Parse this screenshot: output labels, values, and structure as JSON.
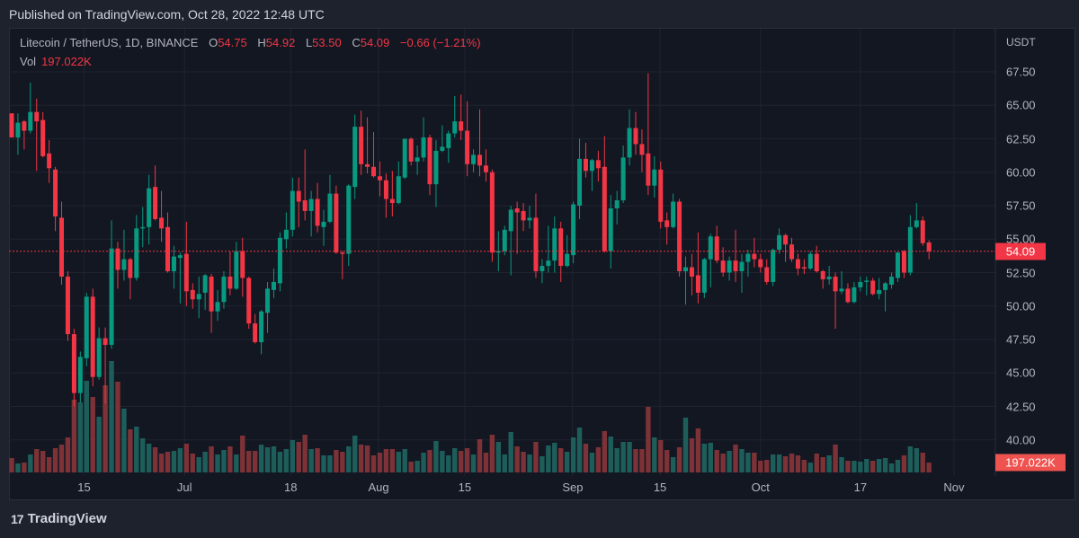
{
  "header": {
    "published": "Published on TradingView.com, Oct 28, 2022 12:48 UTC"
  },
  "legend": {
    "symbol": "Litecoin / TetherUS, 1D, BINANCE",
    "o_label": "O",
    "o": "54.75",
    "h_label": "H",
    "h": "54.92",
    "l_label": "L",
    "l": "53.50",
    "c_label": "C",
    "c": "54.09",
    "change": "−0.66 (−1.21%)",
    "vol_label": "Vol",
    "vol": "197.022K"
  },
  "axis": {
    "unit": "USDT",
    "price_tag": "54.09",
    "volume_tag": "197.022K"
  },
  "footer": {
    "brand": "TradingView",
    "logo_glyph": "17"
  },
  "colors": {
    "up": "#089981",
    "down": "#f23645",
    "up_vol": "#1d5e5b",
    "down_vol": "#7c3236",
    "grid": "#1f2330",
    "bg": "#131722"
  },
  "chart_data": {
    "type": "candlestick",
    "title": "Litecoin / TetherUS, 1D, BINANCE",
    "ylabel": "USDT",
    "ylim": [
      40,
      67.5
    ],
    "last_price": 54.09,
    "price_ticks": [
      "67.50",
      "65.00",
      "62.50",
      "60.00",
      "57.50",
      "55.00",
      "52.50",
      "50.00",
      "47.50",
      "45.00",
      "42.50",
      "40.00"
    ],
    "x_ticks": [
      {
        "label": "15",
        "index": 11.6
      },
      {
        "label": "Jul",
        "index": 27.7
      },
      {
        "label": "18",
        "index": 44.7
      },
      {
        "label": "Aug",
        "index": 58.8
      },
      {
        "label": "15",
        "index": 72.6
      },
      {
        "label": "Sep",
        "index": 89.9
      },
      {
        "label": "15",
        "index": 103.9
      },
      {
        "label": "Oct",
        "index": 120
      },
      {
        "label": "17",
        "index": 136
      },
      {
        "label": "Nov",
        "index": 151
      }
    ],
    "candles_ohlc": [
      [
        64.4,
        64.4,
        62.6,
        62.6
      ],
      [
        62.6,
        64.4,
        61.3,
        63.7
      ],
      [
        63.8,
        63.9,
        61.7,
        63.1
      ],
      [
        63.1,
        66.7,
        62.9,
        64.5
      ],
      [
        64.5,
        65.5,
        60.1,
        63.8
      ],
      [
        63.9,
        64.5,
        61.1,
        61.2
      ],
      [
        61.4,
        62.4,
        59.2,
        60.3
      ],
      [
        60.2,
        60.4,
        55.6,
        56.7
      ],
      [
        56.6,
        57.8,
        51.6,
        52.2
      ],
      [
        52.2,
        52.6,
        47.4,
        47.9
      ],
      [
        47.9,
        48.3,
        42.5,
        43.5
      ],
      [
        43.5,
        46.6,
        42.8,
        46.2
      ],
      [
        46.1,
        51.0,
        45.5,
        50.7
      ],
      [
        50.7,
        51.3,
        44.0,
        44.7
      ],
      [
        44.7,
        48.4,
        44.5,
        47.6
      ],
      [
        47.6,
        48.4,
        42.7,
        47.1
      ],
      [
        47.1,
        56.4,
        46.8,
        54.3
      ],
      [
        54.3,
        54.8,
        51.3,
        52.7
      ],
      [
        52.7,
        55.7,
        51.9,
        53.5
      ],
      [
        53.5,
        53.6,
        50.5,
        52.1
      ],
      [
        52.1,
        56.8,
        51.9,
        55.8
      ],
      [
        55.8,
        57.4,
        54.4,
        55.9
      ],
      [
        55.9,
        59.8,
        54.6,
        58.8
      ],
      [
        58.9,
        60.5,
        56.4,
        56.5
      ],
      [
        56.6,
        58.6,
        54.8,
        55.8
      ],
      [
        55.9,
        57.0,
        52.5,
        52.6
      ],
      [
        52.6,
        54.5,
        51.3,
        53.7
      ],
      [
        53.6,
        54.0,
        50.2,
        53.8
      ],
      [
        53.9,
        56.3,
        50.0,
        51.1
      ],
      [
        51.2,
        51.7,
        49.8,
        50.5
      ],
      [
        50.5,
        52.2,
        49.1,
        50.9
      ],
      [
        51.0,
        52.4,
        49.7,
        52.3
      ],
      [
        52.2,
        52.4,
        48.0,
        49.6
      ],
      [
        49.6,
        51.2,
        48.9,
        50.3
      ],
      [
        50.3,
        52.6,
        49.8,
        52.2
      ],
      [
        52.2,
        54.1,
        50.8,
        51.3
      ],
      [
        51.3,
        54.8,
        51.2,
        54.1
      ],
      [
        54.1,
        55.1,
        50.7,
        52.1
      ],
      [
        52.1,
        52.2,
        48.3,
        48.7
      ],
      [
        48.7,
        49.4,
        47.2,
        47.3
      ],
      [
        47.3,
        49.7,
        46.4,
        49.6
      ],
      [
        49.5,
        51.8,
        48.0,
        51.3
      ],
      [
        51.2,
        52.8,
        50.6,
        51.8
      ],
      [
        51.7,
        55.5,
        51.1,
        55.1
      ],
      [
        55.0,
        57.0,
        54.3,
        55.7
      ],
      [
        55.7,
        59.6,
        55.2,
        58.6
      ],
      [
        58.6,
        59.6,
        55.9,
        57.8
      ],
      [
        57.9,
        61.7,
        56.4,
        57.1
      ],
      [
        57.1,
        58.6,
        55.2,
        58.0
      ],
      [
        58.0,
        59.2,
        55.5,
        56.0
      ],
      [
        55.9,
        57.2,
        54.5,
        56.3
      ],
      [
        56.3,
        59.8,
        56.2,
        58.4
      ],
      [
        58.4,
        59.0,
        53.9,
        54.0
      ],
      [
        54.0,
        54.1,
        52.0,
        53.9
      ],
      [
        53.9,
        59.1,
        53.0,
        59.0
      ],
      [
        58.9,
        64.3,
        58.0,
        63.4
      ],
      [
        63.4,
        64.6,
        59.8,
        60.6
      ],
      [
        60.6,
        64.1,
        59.9,
        60.4
      ],
      [
        60.4,
        63.0,
        59.6,
        59.7
      ],
      [
        59.7,
        60.8,
        58.2,
        59.4
      ],
      [
        59.4,
        59.9,
        56.6,
        58.0
      ],
      [
        58.0,
        60.1,
        56.7,
        57.7
      ],
      [
        57.7,
        60.8,
        57.6,
        59.7
      ],
      [
        59.6,
        62.5,
        59.5,
        62.5
      ],
      [
        62.5,
        62.6,
        60.5,
        60.8
      ],
      [
        60.8,
        62.0,
        59.8,
        61.1
      ],
      [
        61.1,
        64.1,
        60.8,
        62.6
      ],
      [
        62.6,
        62.8,
        58.3,
        59.1
      ],
      [
        59.1,
        62.4,
        57.4,
        61.6
      ],
      [
        61.6,
        63.5,
        61.5,
        61.9
      ],
      [
        61.8,
        63.1,
        60.7,
        62.9
      ],
      [
        62.9,
        65.7,
        62.6,
        63.8
      ],
      [
        63.8,
        65.8,
        62.4,
        63.1
      ],
      [
        63.1,
        65.3,
        59.7,
        60.6
      ],
      [
        60.6,
        61.7,
        60.0,
        61.3
      ],
      [
        61.3,
        64.7,
        59.7,
        60.5
      ],
      [
        60.5,
        61.7,
        59.3,
        60.0
      ],
      [
        60.0,
        60.2,
        53.3,
        54.0
      ],
      [
        54.0,
        55.6,
        52.6,
        54.1
      ],
      [
        54.1,
        56.0,
        53.8,
        55.7
      ],
      [
        55.6,
        57.5,
        52.3,
        57.2
      ],
      [
        57.3,
        57.8,
        53.9,
        57.0
      ],
      [
        57.1,
        57.7,
        55.6,
        56.4
      ],
      [
        56.4,
        57.5,
        55.8,
        56.6
      ],
      [
        56.6,
        58.4,
        52.1,
        52.6
      ],
      [
        52.6,
        53.5,
        51.7,
        53.0
      ],
      [
        53.0,
        56.0,
        52.5,
        53.4
      ],
      [
        53.4,
        56.7,
        52.5,
        55.8
      ],
      [
        55.8,
        56.3,
        51.8,
        53.0
      ],
      [
        53.0,
        55.3,
        52.9,
        53.9
      ],
      [
        53.8,
        57.8,
        53.2,
        57.6
      ],
      [
        57.5,
        62.5,
        56.5,
        61.0
      ],
      [
        61.0,
        62.2,
        59.6,
        60.1
      ],
      [
        60.1,
        61.0,
        58.6,
        60.9
      ],
      [
        60.9,
        61.6,
        59.3,
        60.3
      ],
      [
        60.4,
        62.7,
        54.0,
        54.1
      ],
      [
        54.1,
        58.3,
        52.8,
        57.3
      ],
      [
        57.3,
        58.6,
        56.1,
        57.9
      ],
      [
        57.9,
        62.0,
        57.7,
        61.1
      ],
      [
        61.1,
        64.7,
        60.5,
        63.3
      ],
      [
        63.3,
        64.5,
        61.3,
        62.1
      ],
      [
        62.1,
        63.2,
        60.0,
        61.3
      ],
      [
        61.4,
        67.4,
        58.3,
        59.0
      ],
      [
        59.0,
        61.2,
        58.1,
        60.2
      ],
      [
        60.2,
        60.8,
        55.8,
        56.3
      ],
      [
        56.4,
        57.0,
        54.6,
        55.9
      ],
      [
        55.9,
        58.4,
        55.8,
        57.8
      ],
      [
        57.8,
        58.0,
        52.2,
        52.6
      ],
      [
        52.6,
        53.7,
        50.1,
        52.9
      ],
      [
        52.9,
        53.9,
        50.8,
        52.2
      ],
      [
        52.3,
        55.5,
        50.2,
        51.0
      ],
      [
        51.0,
        53.6,
        50.6,
        53.5
      ],
      [
        53.5,
        55.4,
        51.4,
        55.2
      ],
      [
        55.2,
        56.0,
        53.2,
        53.4
      ],
      [
        53.4,
        54.4,
        52.2,
        52.5
      ],
      [
        52.5,
        53.7,
        51.9,
        53.4
      ],
      [
        53.4,
        55.7,
        51.8,
        52.6
      ],
      [
        52.6,
        53.9,
        51.0,
        53.3
      ],
      [
        53.3,
        54.2,
        52.2,
        53.9
      ],
      [
        53.9,
        55.1,
        52.9,
        53.5
      ],
      [
        53.5,
        53.9,
        52.5,
        52.9
      ],
      [
        52.9,
        53.5,
        51.6,
        51.8
      ],
      [
        51.8,
        54.3,
        51.5,
        54.2
      ],
      [
        54.2,
        55.8,
        53.9,
        55.3
      ],
      [
        55.3,
        55.4,
        53.3,
        54.6
      ],
      [
        54.6,
        55.1,
        53.3,
        53.5
      ],
      [
        53.5,
        53.9,
        52.3,
        52.8
      ],
      [
        52.9,
        53.5,
        52.4,
        52.8
      ],
      [
        52.8,
        54.1,
        52.7,
        53.9
      ],
      [
        53.9,
        54.5,
        52.5,
        52.6
      ],
      [
        52.6,
        52.7,
        51.3,
        52.0
      ],
      [
        52.0,
        53.0,
        51.6,
        52.2
      ],
      [
        52.2,
        52.5,
        48.3,
        51.1
      ],
      [
        51.1,
        52.6,
        50.9,
        51.3
      ],
      [
        51.3,
        51.7,
        50.2,
        50.3
      ],
      [
        50.3,
        51.8,
        50.2,
        51.4
      ],
      [
        51.4,
        52.2,
        51.1,
        51.8
      ],
      [
        51.8,
        52.2,
        50.8,
        51.9
      ],
      [
        51.9,
        52.1,
        50.8,
        50.9
      ],
      [
        50.9,
        52.1,
        50.5,
        51.2
      ],
      [
        51.2,
        51.8,
        49.6,
        51.7
      ],
      [
        51.6,
        52.5,
        51.3,
        52.2
      ],
      [
        52.1,
        54.0,
        51.8,
        54.0
      ],
      [
        54.1,
        54.2,
        52.1,
        52.5
      ],
      [
        52.5,
        56.8,
        52.3,
        55.9
      ],
      [
        55.9,
        57.7,
        55.8,
        56.4
      ],
      [
        56.4,
        56.7,
        54.5,
        54.7
      ],
      [
        54.75,
        54.92,
        53.5,
        54.09
      ]
    ],
    "volumes_k": [
      288,
      180,
      198,
      360,
      468,
      432,
      306,
      486,
      558,
      702,
      1458,
      1404,
      1836,
      1512,
      1116,
      1746,
      2232,
      1818,
      1278,
      864,
      918,
      684,
      576,
      504,
      378,
      414,
      432,
      486,
      576,
      378,
      306,
      414,
      522,
      360,
      450,
      522,
      360,
      738,
      432,
      432,
      558,
      504,
      522,
      414,
      468,
      648,
      612,
      756,
      468,
      486,
      342,
      342,
      450,
      414,
      522,
      738,
      558,
      540,
      342,
      396,
      468,
      468,
      414,
      468,
      216,
      234,
      396,
      450,
      630,
      432,
      342,
      486,
      432,
      486,
      360,
      666,
      396,
      756,
      612,
      360,
      810,
      522,
      414,
      360,
      612,
      324,
      540,
      594,
      486,
      414,
      702,
      900,
      576,
      396,
      504,
      828,
      720,
      486,
      612,
      612,
      468,
      468,
      1314,
      702,
      648,
      450,
      306,
      504,
      1098,
      684,
      882,
      576,
      594,
      450,
      378,
      432,
      558,
      468,
      396,
      396,
      234,
      252,
      360,
      360,
      324,
      378,
      342,
      252,
      198,
      378,
      306,
      342,
      558,
      306,
      234,
      234,
      216,
      270,
      234,
      270,
      288,
      180,
      252,
      342,
      522,
      486,
      396,
      197.022
    ]
  }
}
